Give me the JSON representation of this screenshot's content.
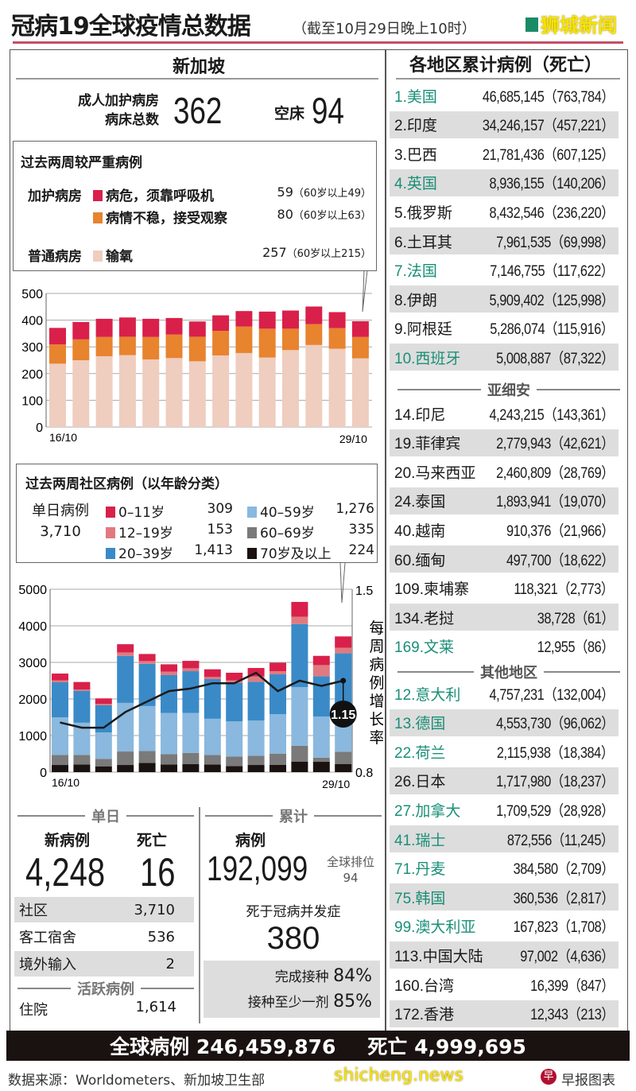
{
  "header": {
    "title": "冠病19全球疫情总数据",
    "subtitle": "（截至10月29日晚上10时）",
    "watermark": "狮城新闻",
    "legend_color": "#1a8a66"
  },
  "singapore": {
    "title": "新加坡",
    "beds_label_1": "成人加护病房",
    "beds_label_2": "病床总数",
    "beds_total": "362",
    "empty_label": "空床",
    "empty_beds": "94"
  },
  "severe": {
    "title": "过去两周较严重病例",
    "icu_label": "加护病房",
    "general_label": "普通病房",
    "rows": [
      {
        "label": "病危，须靠呼吸机",
        "value": "59",
        "note": "（60岁以上49）",
        "color": "#d9204a"
      },
      {
        "label": "病情不稳，接受观察",
        "value": "80",
        "note": "（60岁以上63）",
        "color": "#e8832e"
      },
      {
        "label": "输氧",
        "value": "257",
        "note": "（60岁以上215）",
        "color": "#efcdbf"
      }
    ]
  },
  "community": {
    "title": "过去两周社区病例（以年龄分类）",
    "daily_label": "单日病例",
    "daily_value": "3,710",
    "items": [
      {
        "label": "0–11岁",
        "value": "309",
        "color": "#d9204a"
      },
      {
        "label": "12–19岁",
        "value": "153",
        "color": "#e07a80"
      },
      {
        "label": "20–39岁",
        "value": "1,413",
        "color": "#3a8ac8"
      },
      {
        "label": "40–59岁",
        "value": "1,276",
        "color": "#8ab8de"
      },
      {
        "label": "60–69岁",
        "value": "335",
        "color": "#7a7a7a"
      },
      {
        "label": "70岁及以上",
        "value": "224",
        "color": "#1a1210"
      }
    ]
  },
  "chart_data": [
    {
      "type": "bar",
      "stacked": true,
      "categories": [
        "16/10",
        "17/10",
        "18/10",
        "19/10",
        "20/10",
        "21/10",
        "22/10",
        "23/10",
        "24/10",
        "25/10",
        "26/10",
        "27/10",
        "28/10",
        "29/10"
      ],
      "x_tick_labels": [
        "16/10",
        "29/10"
      ],
      "ylim": [
        0,
        500
      ],
      "y_ticks": [
        0,
        100,
        200,
        300,
        400,
        500
      ],
      "grid": true,
      "series": [
        {
          "name": "输氧",
          "color": "#efcdbf",
          "values": [
            237,
            250,
            265,
            269,
            253,
            258,
            246,
            268,
            277,
            260,
            288,
            307,
            293,
            257
          ]
        },
        {
          "name": "病情不稳，接受观察",
          "color": "#e8832e",
          "values": [
            72,
            78,
            72,
            69,
            84,
            88,
            92,
            92,
            99,
            108,
            80,
            78,
            77,
            80
          ]
        },
        {
          "name": "病危，须靠呼吸机",
          "color": "#d9204a",
          "values": [
            62,
            65,
            68,
            72,
            68,
            62,
            57,
            58,
            58,
            64,
            68,
            66,
            60,
            59
          ]
        }
      ]
    },
    {
      "type": "bar",
      "stacked": true,
      "categories": [
        "16/10",
        "17/10",
        "18/10",
        "19/10",
        "20/10",
        "21/10",
        "22/10",
        "23/10",
        "24/10",
        "25/10",
        "26/10",
        "27/10",
        "28/10",
        "29/10"
      ],
      "x_tick_labels": [
        "16/10",
        "29/10"
      ],
      "ylim": [
        0,
        5000
      ],
      "y_ticks": [
        0,
        1000,
        2000,
        3000,
        4000,
        5000
      ],
      "grid": true,
      "series": [
        {
          "name": "70岁及以上",
          "color": "#1a1210",
          "values": [
            195,
            210,
            159,
            195,
            253,
            210,
            217,
            210,
            166,
            195,
            202,
            289,
            282,
            224
          ]
        },
        {
          "name": "60–69岁",
          "color": "#7a7a7a",
          "values": [
            275,
            260,
            202,
            369,
            325,
            281,
            310,
            260,
            260,
            253,
            304,
            434,
            115,
            335
          ]
        },
        {
          "name": "40–59岁",
          "color": "#8ab8de",
          "values": [
            1026,
            881,
            723,
            1329,
            1228,
            1127,
            1091,
            989,
            961,
            961,
            1076,
            1603,
            1120,
            1276
          ]
        },
        {
          "name": "20–39岁",
          "color": "#3a8ac8",
          "values": [
            960,
            874,
            744,
            1286,
            1156,
            1034,
            1142,
            1084,
            1048,
            1062,
            1091,
            1720,
            1106,
            1413
          ]
        },
        {
          "name": "12–19岁",
          "color": "#e07a80",
          "values": [
            51,
            36,
            36,
            94,
            73,
            94,
            79,
            58,
            72,
            144,
            87,
            202,
            303,
            153
          ]
        },
        {
          "name": "0–11岁",
          "color": "#d9204a",
          "values": [
            188,
            203,
            152,
            224,
            195,
            202,
            203,
            210,
            210,
            232,
            231,
            405,
            253,
            309
          ]
        }
      ],
      "line": {
        "name": "每周病例增长率",
        "color": "#1a1a1a",
        "values": [
          0.99,
          0.97,
          0.97,
          1.03,
          1.07,
          1.11,
          1.12,
          1.14,
          1.14,
          1.18,
          1.11,
          1.15,
          1.13,
          1.15
        ],
        "y2lim": [
          0.8,
          1.5
        ],
        "y2_ticks": [
          "1.5",
          "0.8"
        ],
        "annotation": "1.15"
      }
    }
  ],
  "daily": {
    "title": "单日",
    "new_label": "新病例",
    "new_value": "4,248",
    "death_label": "死亡",
    "death_value": "16",
    "rows": [
      {
        "label": "社区",
        "value": "3,710"
      },
      {
        "label": "客工宿舍",
        "value": "536"
      },
      {
        "label": "境外输入",
        "value": "2"
      }
    ],
    "active_title": "活跃病例",
    "hosp_label": "住院",
    "hosp_value": "1,614"
  },
  "cumulative": {
    "title": "累计",
    "cases_label": "病例",
    "cases_value": "192,099",
    "rank_label": "全球排位",
    "rank_value": "94",
    "death_label": "死于冠病并发症",
    "death_value": "380",
    "vax_full_label": "完成接种",
    "vax_full": "84%",
    "vax_one_label": "接种至少一剂",
    "vax_one": "85%"
  },
  "regions": {
    "title": "各地区累计病例（死亡）",
    "teal_color": "#1a8f78",
    "top": [
      {
        "name": "1.美国",
        "value": "46,685,145（763,784）",
        "teal": true
      },
      {
        "name": "2.印度",
        "value": "34,246,157（457,221）",
        "teal": false
      },
      {
        "name": "3.巴西",
        "value": "21,781,436（607,125）",
        "teal": false
      },
      {
        "name": "4.英国",
        "value": "8,936,155（140,206）",
        "teal": true
      },
      {
        "name": "5.俄罗斯",
        "value": "8,432,546（236,220）",
        "teal": false
      },
      {
        "name": "6.土耳其",
        "value": "7,961,535（69,998）",
        "teal": false
      },
      {
        "name": "7.法国",
        "value": "7,146,755（117,622）",
        "teal": true
      },
      {
        "name": "8.伊朗",
        "value": "5,909,402（125,998）",
        "teal": false
      },
      {
        "name": "9.阿根廷",
        "value": "5,286,074（115,916）",
        "teal": false
      },
      {
        "name": "10.西班牙",
        "value": "5,008,887（87,322）",
        "teal": true
      }
    ],
    "asean_title": "亚细安",
    "asean": [
      {
        "name": "14.印尼",
        "value": "4,243,215（143,361）",
        "teal": false
      },
      {
        "name": "19.菲律宾",
        "value": "2,779,943（42,621）",
        "teal": false
      },
      {
        "name": "20.马来西亚",
        "value": "2,460,809（28,769）",
        "teal": false
      },
      {
        "name": "24.泰国",
        "value": "1,893,941（19,070）",
        "teal": false
      },
      {
        "name": "40.越南",
        "value": "910,376（21,966）",
        "teal": false
      },
      {
        "name": "60.缅甸",
        "value": "497,700（18,622）",
        "teal": false
      },
      {
        "name": "109.柬埔寨",
        "value": "118,321（2,773）",
        "teal": false
      },
      {
        "name": "134.老挝",
        "value": "38,728（61）",
        "teal": false
      },
      {
        "name": "169.文莱",
        "value": "12,955（86）",
        "teal": true
      }
    ],
    "other_title": "其他地区",
    "other": [
      {
        "name": "12.意大利",
        "value": "4,757,231（132,004）",
        "teal": true
      },
      {
        "name": "13.德国",
        "value": "4,553,730（96,062）",
        "teal": true
      },
      {
        "name": "22.荷兰",
        "value": "2,115,938（18,384）",
        "teal": true
      },
      {
        "name": "26.日本",
        "value": "1,717,980（18,237）",
        "teal": false
      },
      {
        "name": "27.加拿大",
        "value": "1,709,529（28,928）",
        "teal": true
      },
      {
        "name": "41.瑞士",
        "value": "872,556（11,245）",
        "teal": true
      },
      {
        "name": "71.丹麦",
        "value": "384,580（2,709）",
        "teal": true
      },
      {
        "name": "75.韩国",
        "value": "360,536（2,817）",
        "teal": true
      },
      {
        "name": "99.澳大利亚",
        "value": "167,823（1,708）",
        "teal": true
      },
      {
        "name": "113.中国大陆",
        "value": "97,002（4,636）",
        "teal": false
      },
      {
        "name": "160.台湾",
        "value": "16,399（847）",
        "teal": false
      },
      {
        "name": "172.香港",
        "value": "12,343（213）",
        "teal": false
      }
    ]
  },
  "global": {
    "cases_label": "全球病例",
    "cases_value": "246,459,876",
    "death_label": "死亡",
    "death_value": "4,999,695"
  },
  "footer": {
    "source": "数据来源：Worldometers、新加坡卫生部",
    "credit": "早报图表",
    "watermark": "shicheng.news"
  }
}
